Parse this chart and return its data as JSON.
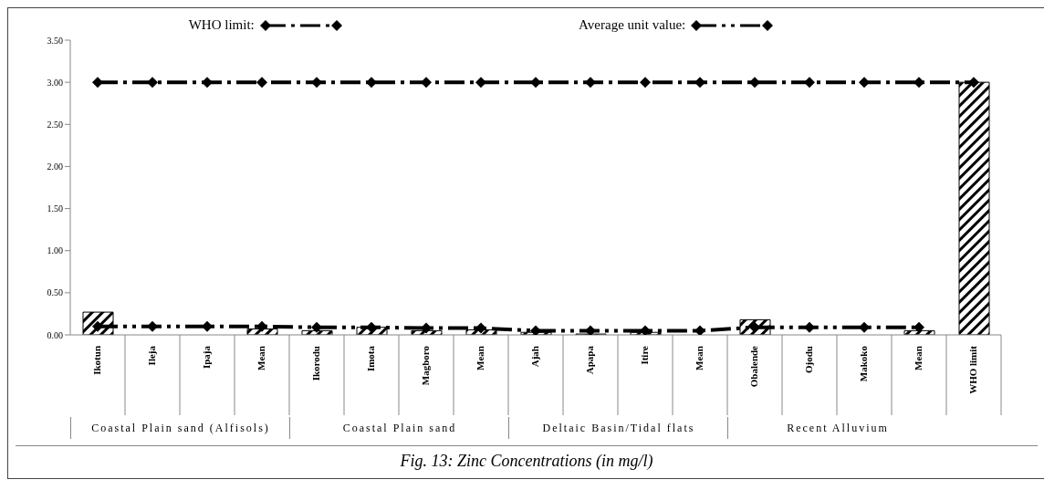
{
  "chart_data": {
    "type": "bar",
    "title": "Fig. 13: Zinc Concentrations (in mg/l)",
    "categories": [
      "Ikotun",
      "Ileja",
      "Ipaja",
      "Mean",
      "Ikorodu",
      "Imota",
      "Magboro",
      "Mean",
      "Ajah",
      "Apapa",
      "Itire",
      "Mean",
      "Obalende",
      "Ojodu",
      "Makoko",
      "Mean",
      "WHO limit"
    ],
    "series": [
      {
        "color": "#000000",
        "values": [
          0.27,
          0.0,
          0.0,
          0.07,
          0.05,
          0.09,
          0.05,
          0.06,
          0.03,
          0.01,
          0.03,
          null,
          0.18,
          0.0,
          null,
          0.05,
          3.0
        ]
      },
      {
        "type": "line",
        "name": "WHO limit:",
        "color": "#000000",
        "line_style": "dashed",
        "values": [
          3.0,
          3.0,
          3.0,
          3.0,
          3.0,
          3.0,
          3.0,
          3.0,
          3.0,
          3.0,
          3.0,
          3.0,
          3.0,
          3.0,
          3.0,
          3.0,
          3.0
        ]
      },
      {
        "type": "line",
        "name": "Average unit value:",
        "color": "#000000",
        "line_style": "dotted",
        "values": [
          0.1,
          0.1,
          0.1,
          0.1,
          0.09,
          0.09,
          0.08,
          0.08,
          0.05,
          0.05,
          0.05,
          0.05,
          0.09,
          0.09,
          0.09,
          0.09,
          null
        ]
      }
    ],
    "annotations": [
      "Coastal Plain sand (Alfisols)",
      "Coastal Plain sand",
      "Deltaic Basin/Tidal flats",
      "Recent Alluvium"
    ],
    "ylim": [
      0,
      3.5
    ],
    "yticks": [
      {
        "value": 0,
        "label": "0.00"
      },
      {
        "value": 0.5,
        "label": "0.50"
      },
      {
        "value": 1,
        "label": "1.00"
      },
      {
        "value": 1.5,
        "label": "1.50"
      },
      {
        "value": 2,
        "label": "2.00"
      },
      {
        "value": 2.5,
        "label": "2.50"
      },
      {
        "value": 3,
        "label": "3.00"
      },
      {
        "value": 3.5,
        "label": "3.50"
      }
    ],
    "legend": "top",
    "marker": "diamond"
  }
}
